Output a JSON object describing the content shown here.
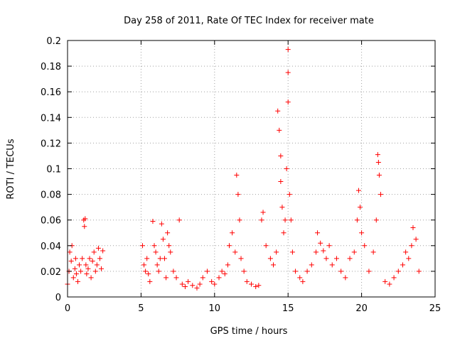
{
  "chart_data": {
    "type": "scatter",
    "title": "Day 258 of 2011, Rate Of TEC Index for receiver mate",
    "xlabel": "GPS time / hours",
    "ylabel": "ROTI / TECUs",
    "xlim": [
      0,
      25
    ],
    "ylim": [
      0,
      0.2
    ],
    "xticks": [
      0,
      5,
      10,
      15,
      20,
      25
    ],
    "xtick_labels": [
      "0",
      "5",
      "10",
      "15",
      "20",
      "25"
    ],
    "yticks": [
      0,
      0.02,
      0.04,
      0.06,
      0.08,
      0.1,
      0.12,
      0.14,
      0.16,
      0.18,
      0.2
    ],
    "ytick_labels": [
      "0",
      "0.02",
      "0.04",
      "0.06",
      "0.08",
      "0.1",
      "0.12",
      "0.14",
      "0.16",
      "0.18",
      "0.2"
    ],
    "grid": true,
    "marker": "+",
    "color": "#ff0000",
    "series": [
      {
        "name": "ROTI",
        "x": [
          0.0,
          0.1,
          0.15,
          0.25,
          0.3,
          0.4,
          0.5,
          0.55,
          0.6,
          0.7,
          0.8,
          0.9,
          1.0,
          1.1,
          1.15,
          1.2,
          1.25,
          1.3,
          1.4,
          1.5,
          1.6,
          1.7,
          1.8,
          1.9,
          2.0,
          2.1,
          2.2,
          2.3,
          2.4,
          5.1,
          5.2,
          5.3,
          5.4,
          5.5,
          5.6,
          5.8,
          5.9,
          6.0,
          6.1,
          6.2,
          6.3,
          6.4,
          6.5,
          6.6,
          6.7,
          6.8,
          6.9,
          7.0,
          7.2,
          7.4,
          7.6,
          7.8,
          8.0,
          8.2,
          8.5,
          8.8,
          9.0,
          9.2,
          9.5,
          9.8,
          10.0,
          10.3,
          10.5,
          10.7,
          10.9,
          11.0,
          11.2,
          11.4,
          11.5,
          11.6,
          11.7,
          11.8,
          12.0,
          12.2,
          12.5,
          12.8,
          13.0,
          13.2,
          13.3,
          13.5,
          13.8,
          14.0,
          14.2,
          14.3,
          14.4,
          14.5,
          14.5,
          14.6,
          14.7,
          14.8,
          14.9,
          15.0,
          15.0,
          15.0,
          15.1,
          15.2,
          15.3,
          15.5,
          15.8,
          16.0,
          16.3,
          16.6,
          16.9,
          17.0,
          17.2,
          17.4,
          17.6,
          17.8,
          18.0,
          18.3,
          18.6,
          18.9,
          19.2,
          19.5,
          19.7,
          19.8,
          19.9,
          20.0,
          20.2,
          20.5,
          20.8,
          21.0,
          21.1,
          21.15,
          21.2,
          21.3,
          21.6,
          21.9,
          22.2,
          22.5,
          22.8,
          23.0,
          23.2,
          23.4,
          23.5,
          23.7,
          23.9
        ],
        "y": [
          0.01,
          0.02,
          0.035,
          0.028,
          0.04,
          0.015,
          0.022,
          0.03,
          0.018,
          0.012,
          0.025,
          0.02,
          0.03,
          0.06,
          0.055,
          0.061,
          0.025,
          0.018,
          0.022,
          0.03,
          0.015,
          0.028,
          0.035,
          0.02,
          0.025,
          0.038,
          0.03,
          0.022,
          0.036,
          0.04,
          0.025,
          0.02,
          0.03,
          0.018,
          0.012,
          0.059,
          0.04,
          0.035,
          0.025,
          0.02,
          0.03,
          0.057,
          0.045,
          0.03,
          0.015,
          0.05,
          0.04,
          0.035,
          0.02,
          0.015,
          0.06,
          0.01,
          0.008,
          0.012,
          0.009,
          0.007,
          0.01,
          0.015,
          0.02,
          0.012,
          0.01,
          0.015,
          0.02,
          0.018,
          0.025,
          0.04,
          0.05,
          0.035,
          0.095,
          0.08,
          0.06,
          0.03,
          0.02,
          0.012,
          0.01,
          0.008,
          0.009,
          0.06,
          0.066,
          0.04,
          0.03,
          0.025,
          0.035,
          0.145,
          0.13,
          0.11,
          0.09,
          0.07,
          0.05,
          0.06,
          0.1,
          0.193,
          0.175,
          0.152,
          0.08,
          0.06,
          0.035,
          0.02,
          0.015,
          0.012,
          0.02,
          0.025,
          0.035,
          0.05,
          0.042,
          0.036,
          0.03,
          0.04,
          0.025,
          0.03,
          0.02,
          0.015,
          0.03,
          0.035,
          0.06,
          0.083,
          0.07,
          0.05,
          0.04,
          0.02,
          0.035,
          0.06,
          0.111,
          0.105,
          0.095,
          0.08,
          0.012,
          0.01,
          0.015,
          0.02,
          0.025,
          0.035,
          0.03,
          0.04,
          0.054,
          0.045,
          0.02
        ]
      }
    ]
  }
}
